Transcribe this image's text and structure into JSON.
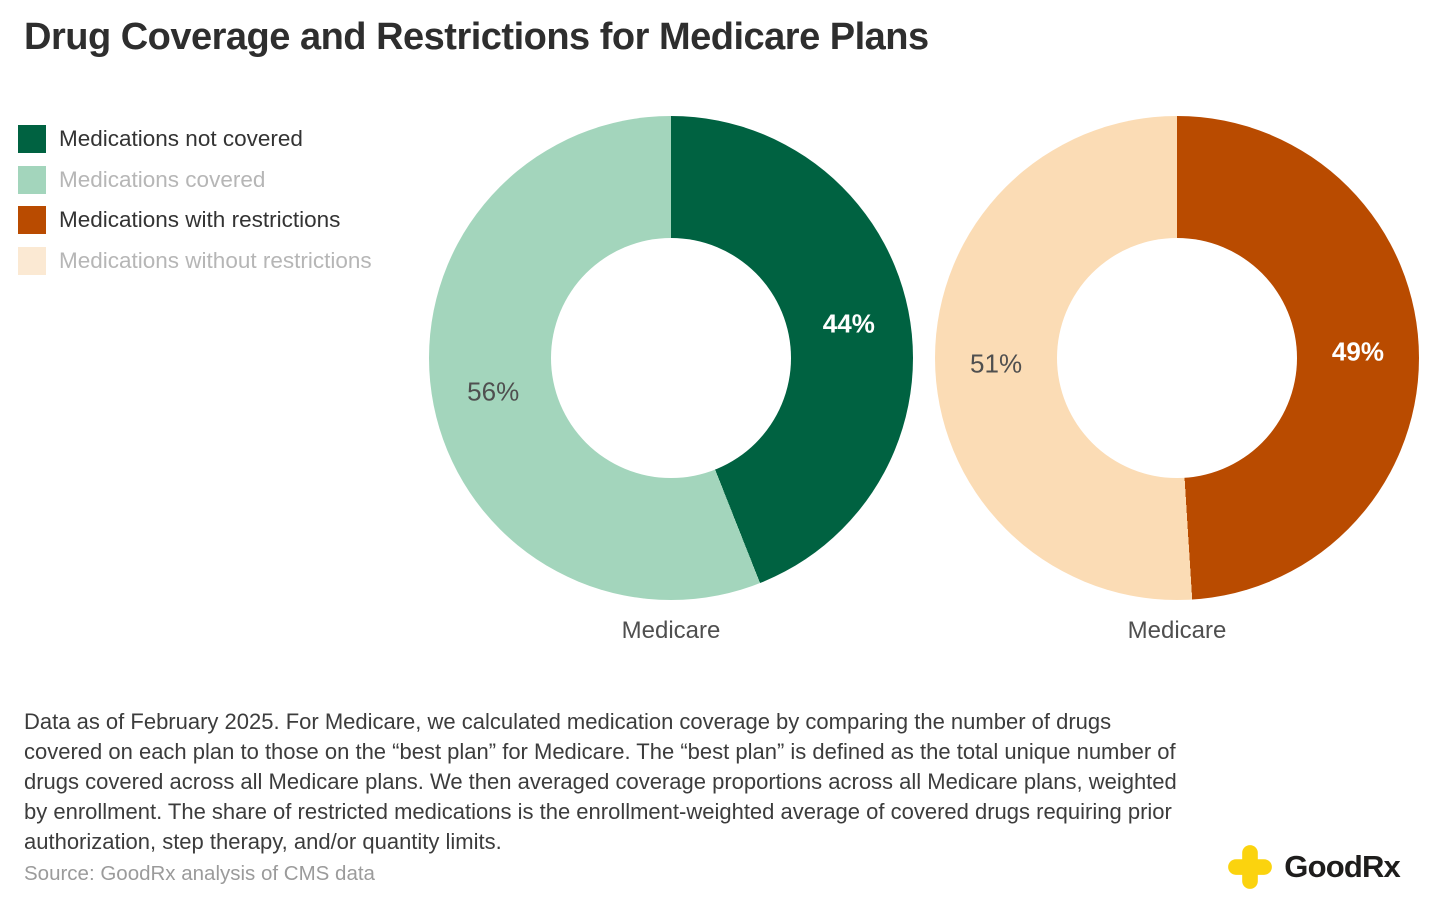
{
  "title": "Drug Coverage and Restrictions for Medicare Plans",
  "colors": {
    "dark_green": "#006241",
    "light_green": "#a3d5bc",
    "dark_orange": "#b94b00",
    "light_peach": "#fbdcb5",
    "brand_yellow": "#fbd30e",
    "text_dark": "#2e2e2e",
    "text_gray": "#4f4f4f",
    "text_dimmed": "#b6b6b6"
  },
  "legend": {
    "items": [
      {
        "label": "Medications not covered",
        "swatch": "#006241",
        "dimmed": false,
        "pattern": false
      },
      {
        "label": "Medications covered",
        "swatch": "#a3d5bc",
        "dimmed": true,
        "pattern": true
      },
      {
        "label": "Medications with restrictions",
        "swatch": "#b94b00",
        "dimmed": false,
        "pattern": false
      },
      {
        "label": "Medications without restrictions",
        "swatch": "#fbe9d3",
        "dimmed": true,
        "pattern": false
      }
    ]
  },
  "chart_data": [
    {
      "type": "pie",
      "subtype": "donut",
      "category": "Medicare",
      "start_angle_deg": 0,
      "direction": "clockwise",
      "slices": [
        {
          "label": "Medications not covered",
          "value_pct": 44,
          "display": "44%",
          "color": "#006241",
          "label_color": "#ffffff",
          "label_bold": true
        },
        {
          "label": "Medications covered",
          "value_pct": 56,
          "display": "56%",
          "color": "#a3d5bc",
          "label_color": "#4f4f4f",
          "label_bold": false
        }
      ]
    },
    {
      "type": "pie",
      "subtype": "donut",
      "category": "Medicare",
      "start_angle_deg": 0,
      "direction": "clockwise",
      "slices": [
        {
          "label": "Medications with restrictions",
          "value_pct": 49,
          "display": "49%",
          "color": "#b94b00",
          "label_color": "#ffffff",
          "label_bold": true
        },
        {
          "label": "Medications without restrictions",
          "value_pct": 51,
          "display": "51%",
          "color": "#fbdcb5",
          "label_color": "#4f4f4f",
          "label_bold": false
        }
      ]
    }
  ],
  "footnote": "Data as of February 2025. For Medicare, we calculated medication coverage by comparing the number of drugs covered on each plan to those on the “best plan” for Medicare. The “best plan” is defined as the total unique number of drugs covered across all Medicare plans. We then averaged coverage proportions across all Medicare plans, weighted by enrollment. The share of restricted medications is the enrollment-weighted average of covered drugs requiring prior authorization, step therapy, and/or quantity limits.",
  "source": "Source: GoodRx analysis of CMS data",
  "logo": {
    "text": "GoodRx"
  }
}
